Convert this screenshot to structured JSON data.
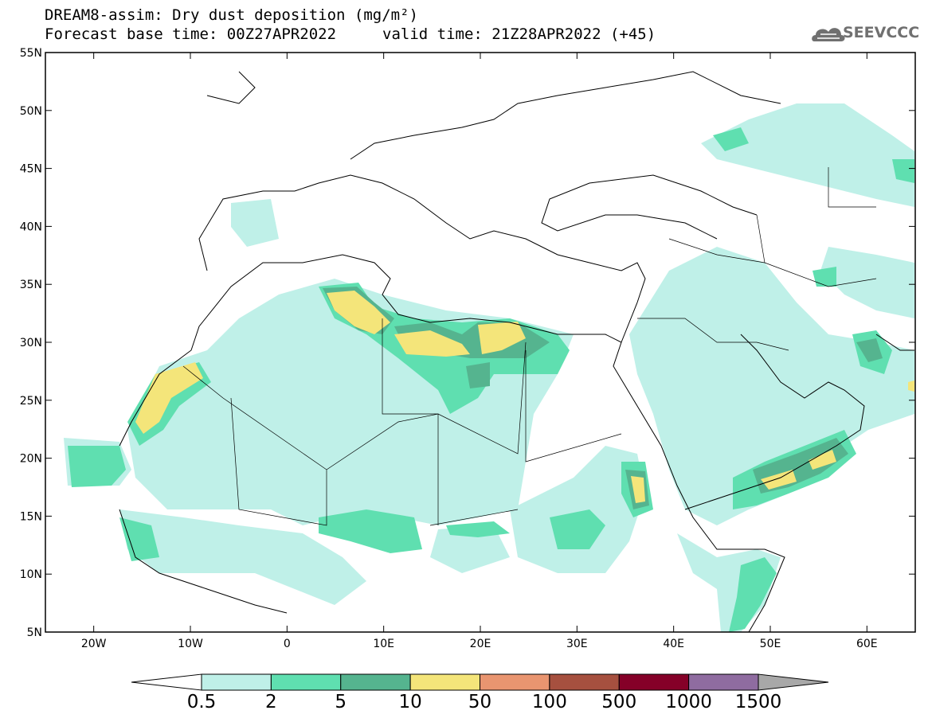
{
  "header": {
    "title_line1": "DREAM8-assim: Dry dust deposition (mg/m²)",
    "title_line2a": "Forecast base time: 00Z27APR2022",
    "title_line2b": "valid time: 21Z28APR2022 (+45)",
    "logo_text": "SEEVCCC"
  },
  "map": {
    "lon_range": [
      -25,
      65
    ],
    "lat_range": [
      5,
      55
    ],
    "lon_ticks": [
      "20W",
      "10W",
      "0",
      "10E",
      "20E",
      "30E",
      "40E",
      "50E",
      "60E"
    ],
    "lat_ticks": [
      "5N",
      "10N",
      "15N",
      "20N",
      "25N",
      "30N",
      "35N",
      "40N",
      "45N",
      "50N",
      "55N"
    ]
  },
  "colorbar": {
    "labels": [
      "0.5",
      "2",
      "5",
      "10",
      "50",
      "100",
      "500",
      "1000",
      "1500"
    ],
    "colors": [
      "#ffffff",
      "#bff0e8",
      "#5fdfb0",
      "#55b48f",
      "#f4e57a",
      "#e99570",
      "#a6503f",
      "#850028",
      "#8f6ca0",
      "#a8a8a8"
    ]
  }
}
